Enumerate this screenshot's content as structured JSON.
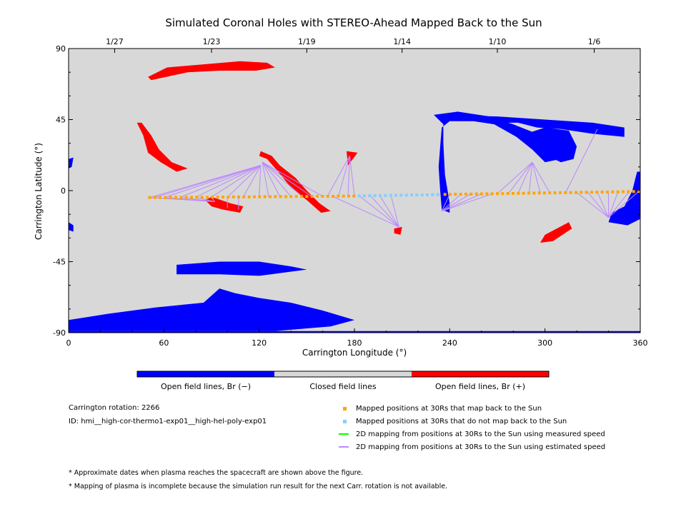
{
  "chart_data": {
    "type": "scatter",
    "title": "Simulated Coronal Holes with STEREO-Ahead Mapped Back to the Sun",
    "xlabel": "Carrington Longitude (°)",
    "ylabel": "Carrington Latitude (°)",
    "xlim": [
      0,
      360
    ],
    "ylim": [
      -90,
      90
    ],
    "x_ticks": [
      "0",
      "60",
      "120",
      "180",
      "240",
      "300",
      "360"
    ],
    "y_ticks": [
      "90",
      "45",
      "0",
      "-45",
      "-90"
    ],
    "date_ticks": [
      {
        "label": "1/27",
        "lon": 29
      },
      {
        "label": "1/23",
        "lon": 90
      },
      {
        "label": "1/19",
        "lon": 150
      },
      {
        "label": "1/14",
        "lon": 210
      },
      {
        "label": "1/10",
        "lon": 270
      },
      {
        "label": "1/6",
        "lon": 331
      }
    ],
    "colors": {
      "background": "#d8d8d8",
      "open_negative": "#0000ff",
      "open_positive": "#ff0000",
      "closed": "#d8d8d8",
      "mapped_back": "#ffa500",
      "not_mapped": "#87cefa",
      "measured_speed": "#00ff00",
      "estimated_speed": "#bb88ff"
    },
    "colorbar_labels": [
      "Open field lines, Br (−)",
      "Closed field lines",
      "Open field lines, Br (+)"
    ],
    "holes_positive": [
      [
        [
          50,
          72
        ],
        [
          62,
          78
        ],
        [
          85,
          80
        ],
        [
          108,
          82
        ],
        [
          125,
          81
        ],
        [
          130,
          78
        ],
        [
          118,
          76
        ],
        [
          95,
          76
        ],
        [
          75,
          75
        ],
        [
          52,
          70
        ]
      ],
      [
        [
          43,
          43
        ],
        [
          47,
          35
        ],
        [
          50,
          24
        ],
        [
          58,
          18
        ],
        [
          68,
          12
        ],
        [
          75,
          14
        ],
        [
          65,
          18
        ],
        [
          57,
          26
        ],
        [
          52,
          35
        ],
        [
          46,
          43
        ]
      ],
      [
        [
          90,
          -4
        ],
        [
          102,
          -8
        ],
        [
          110,
          -10
        ],
        [
          108,
          -14
        ],
        [
          97,
          -12
        ],
        [
          90,
          -10
        ],
        [
          86,
          -6
        ]
      ],
      [
        [
          121,
          25
        ],
        [
          128,
          22
        ],
        [
          133,
          16
        ],
        [
          143,
          8
        ],
        [
          150,
          0
        ],
        [
          158,
          -8
        ],
        [
          165,
          -13
        ],
        [
          159,
          -14
        ],
        [
          150,
          -6
        ],
        [
          140,
          2
        ],
        [
          132,
          12
        ],
        [
          125,
          20
        ],
        [
          120,
          22
        ]
      ],
      [
        [
          175,
          25
        ],
        [
          182,
          24
        ],
        [
          179,
          20
        ],
        [
          176,
          16
        ]
      ],
      [
        [
          205,
          -24
        ],
        [
          210,
          -23
        ],
        [
          209,
          -28
        ],
        [
          205,
          -27
        ]
      ],
      [
        [
          300,
          -28
        ],
        [
          315,
          -20
        ],
        [
          317,
          -24
        ],
        [
          305,
          -32
        ],
        [
          297,
          -33
        ]
      ]
    ],
    "holes_negative": [
      [
        [
          230,
          48
        ],
        [
          245,
          50
        ],
        [
          265,
          47
        ],
        [
          280,
          42
        ],
        [
          295,
          36
        ],
        [
          305,
          25
        ],
        [
          310,
          20
        ],
        [
          300,
          18
        ],
        [
          292,
          26
        ],
        [
          282,
          34
        ],
        [
          268,
          42
        ],
        [
          255,
          44
        ],
        [
          240,
          44
        ],
        [
          235,
          40
        ],
        [
          234,
          28
        ],
        [
          233,
          15
        ],
        [
          234,
          0
        ],
        [
          235,
          -12
        ],
        [
          240,
          -14
        ],
        [
          240,
          -8
        ],
        [
          237,
          10
        ],
        [
          236,
          30
        ],
        [
          236,
          42
        ]
      ],
      [
        [
          230,
          48
        ],
        [
          270,
          47
        ],
        [
          300,
          45
        ],
        [
          330,
          43
        ],
        [
          350,
          40
        ],
        [
          350,
          34
        ],
        [
          330,
          36
        ],
        [
          310,
          39
        ],
        [
          295,
          40
        ],
        [
          283,
          43
        ],
        [
          265,
          43
        ],
        [
          240,
          46
        ]
      ],
      [
        [
          285,
          35
        ],
        [
          295,
          25
        ],
        [
          310,
          18
        ],
        [
          318,
          20
        ],
        [
          320,
          28
        ],
        [
          315,
          38
        ],
        [
          300,
          40
        ]
      ],
      [
        [
          358,
          12
        ],
        [
          360,
          12
        ],
        [
          360,
          -18
        ],
        [
          352,
          -22
        ],
        [
          340,
          -20
        ],
        [
          342,
          -14
        ],
        [
          350,
          -10
        ],
        [
          355,
          0
        ],
        [
          357,
          8
        ]
      ],
      [
        [
          0,
          20
        ],
        [
          3,
          21
        ],
        [
          2,
          15
        ],
        [
          0,
          14
        ]
      ],
      [
        [
          0,
          -20
        ],
        [
          3,
          -22
        ],
        [
          3,
          -26
        ],
        [
          0,
          -25
        ]
      ],
      [
        [
          68,
          -47
        ],
        [
          95,
          -45
        ],
        [
          120,
          -45
        ],
        [
          140,
          -48
        ],
        [
          150,
          -50
        ],
        [
          120,
          -54
        ],
        [
          95,
          -53
        ],
        [
          68,
          -53
        ]
      ],
      [
        [
          0,
          -82
        ],
        [
          25,
          -78
        ],
        [
          55,
          -74
        ],
        [
          85,
          -71
        ],
        [
          95,
          -62
        ],
        [
          105,
          -65
        ],
        [
          120,
          -68
        ],
        [
          140,
          -71
        ],
        [
          160,
          -76
        ],
        [
          180,
          -82
        ],
        [
          165,
          -86
        ],
        [
          130,
          -89
        ],
        [
          60,
          -89
        ],
        [
          0,
          -89
        ]
      ],
      [
        [
          0,
          -89
        ],
        [
          360,
          -89
        ],
        [
          360,
          -91
        ],
        [
          0,
          -91
        ]
      ]
    ],
    "series": [
      {
        "name": "Mapped positions at 30Rs that map back to the Sun",
        "color": "#ffa500",
        "marker": "square",
        "x": [
          51,
          54.3,
          57.6,
          60.9,
          64.2,
          67.5,
          70.8,
          74.1,
          77.4,
          80.7,
          84,
          87.3,
          90.6,
          93.9,
          97.2,
          100.5,
          103.8,
          107.1,
          110.4,
          113.7,
          117,
          120.3,
          123.6,
          126.9,
          130.2,
          133.5,
          136.8,
          140.1,
          143.4,
          146.7,
          150,
          153.3,
          156.6,
          159.9,
          163.2,
          166.5,
          169.8,
          173.1,
          176.4,
          179.7,
          237,
          240.3,
          243.6,
          246.9,
          250.2,
          253.5,
          256.8,
          260.1,
          263.4,
          266.7,
          270,
          273.3,
          276.6,
          279.9,
          283.2,
          286.5,
          289.8,
          293.1,
          296.4,
          299.7,
          303,
          306.3,
          309.6,
          312.9,
          316.2,
          319.5,
          322.8,
          326.1,
          329.4,
          332.7,
          336,
          339.3,
          342.6,
          345.9,
          349.2,
          352.5,
          355.8,
          359
        ],
        "y": [
          -4.4,
          -4.4,
          -4.4,
          -4.4,
          -4.3,
          -4.3,
          -4.3,
          -4.3,
          -4.2,
          -4.2,
          -4.2,
          -4.2,
          -4.1,
          -4.1,
          -4.1,
          -4.1,
          -4,
          -4,
          -4,
          -4,
          -3.9,
          -3.9,
          -3.9,
          -3.9,
          -3.8,
          -3.8,
          -3.8,
          -3.8,
          -3.7,
          -3.7,
          -3.7,
          -3.7,
          -3.6,
          -3.6,
          -3.6,
          -3.6,
          -3.5,
          -3.5,
          -3.5,
          -3.5,
          -2.4,
          -2.4,
          -2.3,
          -2.3,
          -2.2,
          -2.2,
          -2.1,
          -2.1,
          -2,
          -2,
          -1.9,
          -1.9,
          -1.8,
          -1.8,
          -1.7,
          -1.7,
          -1.6,
          -1.6,
          -1.5,
          -1.5,
          -1.4,
          -1.4,
          -1.3,
          -1.3,
          -1.2,
          -1.2,
          -1.1,
          -1.1,
          -1,
          -1,
          -0.9,
          -0.9,
          -0.8,
          -0.8,
          -0.7,
          -0.7,
          -0.6,
          -0.5
        ]
      },
      {
        "name": "Mapped positions at 30Rs that do not map back to the Sun",
        "color": "#87cefa",
        "marker": "square",
        "x": [
          183,
          186.3,
          189.6,
          192.9,
          196.2,
          199.5,
          202.8,
          206.1,
          209.4,
          212.7,
          216,
          219.3,
          222.6,
          225.9,
          229.2,
          232.5
        ],
        "y": [
          -3.3,
          -3.3,
          -3.2,
          -3.2,
          -3.1,
          -3.1,
          -3,
          -3,
          -2.9,
          -2.9,
          -2.8,
          -2.8,
          -2.7,
          -2.7,
          -2.6,
          -2.6
        ]
      },
      {
        "name": "2D mapping from positions at 30Rs to the Sun using measured speed",
        "color": "#00ff00",
        "marker": "line",
        "segments": []
      },
      {
        "name": "2D mapping from positions at 30Rs to the Sun using estimated speed",
        "color": "#bb88ff",
        "marker": "line",
        "segments": [
          [
            51,
            -4.4,
            121,
            16
          ],
          [
            54,
            -4.4,
            121,
            16
          ],
          [
            60,
            -4.4,
            121,
            16
          ],
          [
            70,
            -4.3,
            121,
            16
          ],
          [
            80,
            -4.2,
            121,
            16
          ],
          [
            90,
            -4.1,
            121,
            16
          ],
          [
            100,
            -4.1,
            121,
            16
          ],
          [
            110,
            -4,
            121,
            16
          ],
          [
            120,
            -3.9,
            121,
            16
          ],
          [
            51,
            -4.4,
            92,
            -7
          ],
          [
            60,
            -4.4,
            92,
            -7
          ],
          [
            70,
            -4.3,
            92,
            -7
          ],
          [
            80,
            -4.2,
            92,
            -7
          ],
          [
            90,
            -4.1,
            92,
            -7
          ],
          [
            100,
            -4.1,
            100,
            -11
          ],
          [
            107,
            -4,
            107,
            -12
          ],
          [
            126,
            -3.9,
            122,
            18
          ],
          [
            133,
            -3.8,
            122,
            18
          ],
          [
            140,
            -3.8,
            122,
            18
          ],
          [
            147,
            -3.7,
            122,
            18
          ],
          [
            153,
            -3.7,
            122,
            18
          ],
          [
            160,
            -3.6,
            122,
            18
          ],
          [
            163,
            -3.6,
            177,
            22
          ],
          [
            170,
            -3.5,
            177,
            22
          ],
          [
            176,
            -3.5,
            177,
            22
          ],
          [
            180,
            -3.5,
            177,
            22
          ],
          [
            183,
            -3.3,
            208,
            -23
          ],
          [
            190,
            -3.2,
            208,
            -23
          ],
          [
            196,
            -3.1,
            208,
            -23
          ],
          [
            203,
            -3,
            208,
            -23
          ],
          [
            166,
            -3.5,
            208,
            -23
          ],
          [
            240,
            -2.4,
            235,
            -13
          ],
          [
            247,
            -2.3,
            235,
            -13
          ],
          [
            253,
            -2.2,
            235,
            -13
          ],
          [
            260,
            -2.1,
            235,
            -13
          ],
          [
            267,
            -2,
            235,
            -13
          ],
          [
            270,
            -1.9,
            292,
            18
          ],
          [
            277,
            -1.8,
            292,
            18
          ],
          [
            283,
            -1.7,
            292,
            18
          ],
          [
            290,
            -1.6,
            292,
            18
          ],
          [
            297,
            -1.5,
            292,
            18
          ],
          [
            303,
            -1.4,
            292,
            18
          ],
          [
            313,
            -1.3,
            333,
            39
          ],
          [
            320,
            -1.2,
            340,
            -17
          ],
          [
            327,
            -1.1,
            340,
            -17
          ],
          [
            333,
            -1,
            340,
            -17
          ],
          [
            340,
            -0.9,
            340,
            -17
          ],
          [
            346,
            -0.8,
            340,
            -17
          ],
          [
            353,
            -0.7,
            340,
            -17
          ],
          [
            359,
            -0.5,
            340,
            -17
          ]
        ]
      }
    ]
  },
  "info": {
    "rotation": "Carrington rotation: 2266",
    "id": "ID: hmi__high-cor-thermo1-exp01__high-hel-poly-exp01"
  },
  "legend": [
    {
      "label": "Mapped positions at 30Rs that map back to the Sun",
      "color": "#ffa500",
      "type": "square"
    },
    {
      "label": "Mapped positions at 30Rs that do not map back to the Sun",
      "color": "#87cefa",
      "type": "square"
    },
    {
      "label": "2D mapping from positions at 30Rs to the Sun using measured speed",
      "color": "#00ff00",
      "type": "line"
    },
    {
      "label": "2D mapping from positions at 30Rs to the Sun using estimated speed",
      "color": "#bb88ff",
      "type": "line"
    }
  ],
  "notes": [
    "* Approximate dates when plasma reaches the spacecraft are shown above the figure.",
    "* Mapping of plasma is incomplete because the simulation run result for the next Carr. rotation is not available."
  ]
}
